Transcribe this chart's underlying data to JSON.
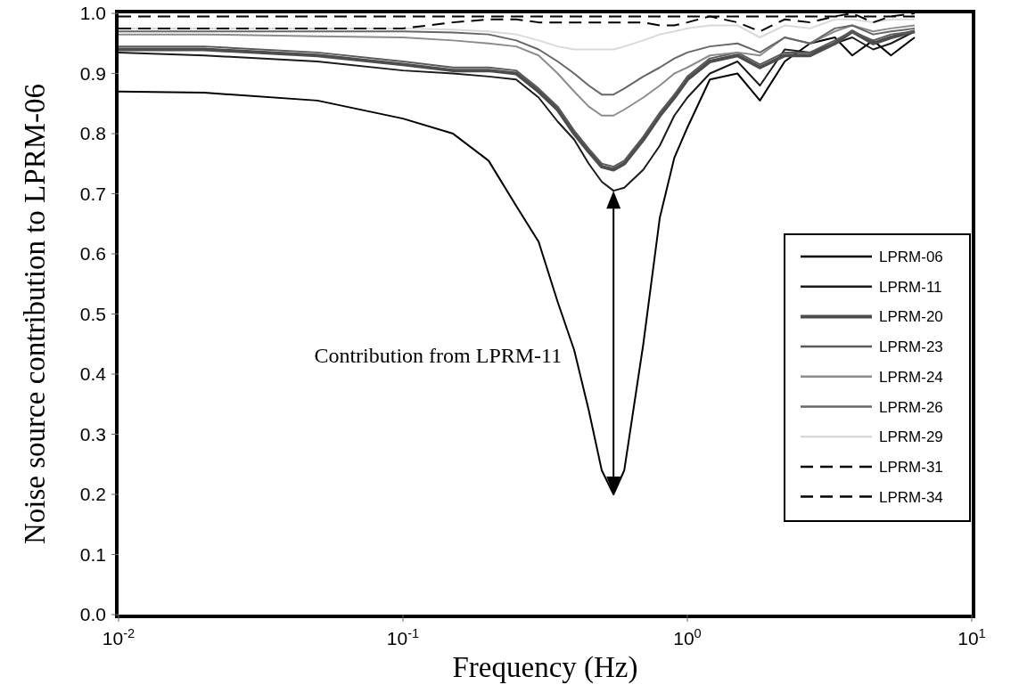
{
  "chart_data": {
    "type": "line",
    "xlabel": "Frequency (Hz)",
    "ylabel": "Noise source contribution to LPRM-06",
    "x": [
      0.01,
      0.02,
      0.05,
      0.1,
      0.15,
      0.2,
      0.25,
      0.3,
      0.35,
      0.4,
      0.45,
      0.5,
      0.55,
      0.6,
      0.7,
      0.8,
      0.9,
      1.0,
      1.2,
      1.5,
      1.8,
      2.2,
      2.7,
      3.3,
      3.8,
      4.5,
      5.2,
      6.3
    ],
    "series": [
      {
        "name": "LPRM-06",
        "color": "#000000",
        "line_style": "solid",
        "values": [
          0.87,
          0.868,
          0.855,
          0.825,
          0.8,
          0.755,
          0.68,
          0.62,
          0.52,
          0.44,
          0.34,
          0.24,
          0.2,
          0.24,
          0.45,
          0.66,
          0.76,
          0.81,
          0.89,
          0.9,
          0.855,
          0.92,
          0.95,
          0.96,
          0.93,
          0.955,
          0.93,
          0.96
        ]
      },
      {
        "name": "LPRM-11",
        "color": "#1a1a1a",
        "line_style": "solid",
        "values": [
          0.935,
          0.93,
          0.92,
          0.905,
          0.9,
          0.895,
          0.89,
          0.86,
          0.82,
          0.79,
          0.75,
          0.72,
          0.705,
          0.71,
          0.74,
          0.78,
          0.83,
          0.86,
          0.9,
          0.92,
          0.88,
          0.94,
          0.935,
          0.95,
          0.96,
          0.94,
          0.95,
          0.97
        ]
      },
      {
        "name": "LPRM-20",
        "color": "#4d4d4d",
        "line_style": "solid",
        "values": [
          0.94,
          0.94,
          0.93,
          0.915,
          0.905,
          0.905,
          0.9,
          0.87,
          0.84,
          0.8,
          0.77,
          0.745,
          0.74,
          0.75,
          0.79,
          0.83,
          0.86,
          0.89,
          0.92,
          0.93,
          0.91,
          0.93,
          0.93,
          0.95,
          0.97,
          0.95,
          0.96,
          0.97
        ]
      },
      {
        "name": "LPRM-23",
        "color": "#5a5a5a",
        "line_style": "solid",
        "values": [
          0.945,
          0.945,
          0.935,
          0.92,
          0.91,
          0.91,
          0.905,
          0.875,
          0.845,
          0.805,
          0.775,
          0.75,
          0.745,
          0.755,
          0.795,
          0.835,
          0.865,
          0.895,
          0.925,
          0.935,
          0.915,
          0.935,
          0.935,
          0.955,
          0.97,
          0.955,
          0.965,
          0.97
        ]
      },
      {
        "name": "LPRM-24",
        "color": "#8c8c8c",
        "line_style": "solid",
        "values": [
          0.965,
          0.965,
          0.962,
          0.96,
          0.955,
          0.95,
          0.945,
          0.93,
          0.9,
          0.87,
          0.845,
          0.83,
          0.83,
          0.84,
          0.86,
          0.88,
          0.9,
          0.91,
          0.93,
          0.935,
          0.93,
          0.96,
          0.95,
          0.97,
          0.98,
          0.97,
          0.975,
          0.98
        ]
      },
      {
        "name": "LPRM-26",
        "color": "#666666",
        "line_style": "solid",
        "values": [
          0.97,
          0.97,
          0.97,
          0.97,
          0.968,
          0.965,
          0.955,
          0.94,
          0.92,
          0.9,
          0.88,
          0.865,
          0.865,
          0.875,
          0.895,
          0.91,
          0.925,
          0.935,
          0.945,
          0.95,
          0.935,
          0.96,
          0.95,
          0.975,
          0.98,
          0.965,
          0.97,
          0.975
        ]
      },
      {
        "name": "LPRM-29",
        "color": "#d9d9d9",
        "line_style": "solid",
        "values": [
          0.975,
          0.975,
          0.975,
          0.975,
          0.973,
          0.97,
          0.965,
          0.955,
          0.945,
          0.94,
          0.94,
          0.94,
          0.94,
          0.945,
          0.955,
          0.965,
          0.97,
          0.975,
          0.98,
          0.98,
          0.96,
          0.98,
          0.975,
          0.99,
          0.99,
          0.985,
          0.99,
          0.99
        ]
      },
      {
        "name": "LPRM-31",
        "color": "#000000",
        "line_style": "dashed",
        "values": [
          0.975,
          0.975,
          0.975,
          0.975,
          0.985,
          0.99,
          0.99,
          0.985,
          0.985,
          0.985,
          0.985,
          0.985,
          0.985,
          0.985,
          0.985,
          0.98,
          0.98,
          0.985,
          0.995,
          0.985,
          0.97,
          0.99,
          0.985,
          0.995,
          1.0,
          0.985,
          0.995,
          1.0
        ]
      },
      {
        "name": "LPRM-34",
        "color": "#000000",
        "line_style": "dashed",
        "values": [
          0.995,
          0.995,
          0.995,
          0.995,
          0.995,
          0.995,
          0.995,
          0.995,
          0.995,
          0.995,
          0.995,
          0.995,
          0.995,
          0.995,
          0.995,
          0.995,
          0.995,
          0.995,
          0.995,
          0.995,
          0.995,
          0.995,
          0.995,
          0.995,
          0.995,
          0.995,
          0.995,
          0.995
        ]
      }
    ],
    "xlim": [
      0.01,
      10
    ],
    "xticks": [
      {
        "value": 0.01,
        "label": "10$^{-2}$"
      },
      {
        "value": 0.1,
        "label": "10$^{-1}$"
      },
      {
        "value": 1,
        "label": "10$^{0}$"
      },
      {
        "value": 10,
        "label": "10$^{1}$"
      }
    ],
    "ylim": [
      0,
      1.0
    ],
    "yticks": [
      {
        "value": 0,
        "label": "0.0"
      },
      {
        "value": 0.1,
        "label": "0.1"
      },
      {
        "value": 0.2,
        "label": "0.2"
      },
      {
        "value": 0.3,
        "label": "0.3"
      },
      {
        "value": 0.4,
        "label": "0.4"
      },
      {
        "value": 0.5,
        "label": "0.5"
      },
      {
        "value": 0.6,
        "label": "0.6"
      },
      {
        "value": 0.7,
        "label": "0.7"
      },
      {
        "value": 0.8,
        "label": "0.8"
      },
      {
        "value": 0.9,
        "label": "0.9"
      },
      {
        "value": 1.0,
        "label": "1.0"
      }
    ],
    "log": "x",
    "grid": false,
    "legend": "right",
    "marker": "none",
    "annotations": [
      "Contribution from LPRM-11"
    ]
  }
}
